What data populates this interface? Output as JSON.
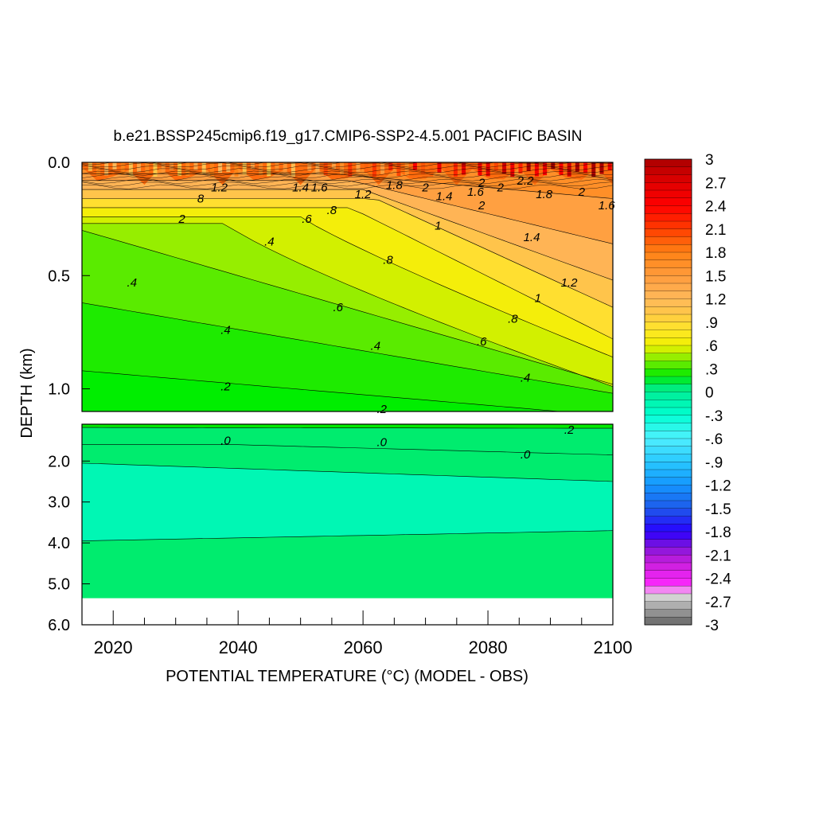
{
  "chart_data": {
    "type": "heatmap",
    "title": "b.e21.BSSP245cmip6.f19_g17.CMIP6-SSP2-4.5.001 PACIFIC BASIN",
    "xlabel": "POTENTIAL TEMPERATURE (°C) (MODEL - OBS)",
    "ylabel": "DEPTH (km)",
    "xlim": [
      2015,
      2100
    ],
    "x_ticks": [
      {
        "v": 2020,
        "label": "2020"
      },
      {
        "v": 2040,
        "label": "2040"
      },
      {
        "v": 2060,
        "label": "2060"
      },
      {
        "v": 2080,
        "label": "2080"
      },
      {
        "v": 2100,
        "label": "2100"
      }
    ],
    "upper_panel": {
      "ylim": [
        0.0,
        1.1
      ],
      "y_ticks": [
        {
          "v": 0.0,
          "label": "0.0"
        },
        {
          "v": 0.5,
          "label": "0.5"
        },
        {
          "v": 1.0,
          "label": "1.0"
        }
      ]
    },
    "lower_panel": {
      "ylim": [
        1.1,
        6.0
      ],
      "y_ticks": [
        {
          "v": 2.0,
          "label": "2.0"
        },
        {
          "v": 3.0,
          "label": "3.0"
        },
        {
          "v": 4.0,
          "label": "4.0"
        },
        {
          "v": 5.0,
          "label": "5.0"
        },
        {
          "v": 6.0,
          "label": "6.0"
        }
      ]
    },
    "colorbar": {
      "range": [
        -3,
        3
      ],
      "step": 0.1,
      "labels": [
        "3",
        "2.7",
        "2.4",
        "2.1",
        "1.8",
        "1.5",
        "1.2",
        ".9",
        ".6",
        ".3",
        "0",
        "-.3",
        "-.6",
        "-.9",
        "-1.2",
        "-1.5",
        "-1.8",
        "-2.1",
        "-2.4",
        "-2.7",
        "-3"
      ]
    },
    "contour_labels": [
      {
        "panel": "upper",
        "x": 2023,
        "y": 0.53,
        "text": ".4"
      },
      {
        "panel": "upper",
        "x": 2038,
        "y": 0.74,
        "text": ".4"
      },
      {
        "panel": "upper",
        "x": 2038,
        "y": 0.99,
        "text": ".2"
      },
      {
        "panel": "upper",
        "x": 2045,
        "y": 0.35,
        "text": ".4"
      },
      {
        "panel": "upper",
        "x": 2051,
        "y": 0.25,
        "text": ".6"
      },
      {
        "panel": "upper",
        "x": 2055,
        "y": 0.21,
        "text": ".8"
      },
      {
        "panel": "upper",
        "x": 2056,
        "y": 0.64,
        "text": ".6"
      },
      {
        "panel": "upper",
        "x": 2062,
        "y": 0.81,
        "text": ".4"
      },
      {
        "panel": "upper",
        "x": 2063,
        "y": 1.09,
        "text": ".2"
      },
      {
        "panel": "upper",
        "x": 2064,
        "y": 0.43,
        "text": ".8"
      },
      {
        "panel": "upper",
        "x": 2072,
        "y": 0.28,
        "text": "1"
      },
      {
        "panel": "upper",
        "x": 2079,
        "y": 0.79,
        "text": ".6"
      },
      {
        "panel": "upper",
        "x": 2084,
        "y": 0.69,
        "text": ".8"
      },
      {
        "panel": "upper",
        "x": 2088,
        "y": 0.6,
        "text": "1"
      },
      {
        "panel": "upper",
        "x": 2086,
        "y": 0.95,
        "text": ".4"
      },
      {
        "panel": "upper",
        "x": 2093,
        "y": 0.53,
        "text": "1.2"
      },
      {
        "panel": "upper",
        "x": 2087,
        "y": 0.33,
        "text": "1.4"
      },
      {
        "panel": "upper",
        "x": 2099,
        "y": 0.19,
        "text": "1.6"
      },
      {
        "panel": "upper",
        "x": 2095,
        "y": 0.13,
        "text": "2"
      },
      {
        "panel": "upper",
        "x": 2089,
        "y": 0.14,
        "text": "1.8"
      },
      {
        "panel": "upper",
        "x": 2065,
        "y": 0.1,
        "text": "1.8"
      },
      {
        "panel": "upper",
        "x": 2060,
        "y": 0.14,
        "text": "1.2"
      },
      {
        "panel": "upper",
        "x": 2050,
        "y": 0.11,
        "text": "1.4"
      },
      {
        "panel": "upper",
        "x": 2053,
        "y": 0.11,
        "text": "1.6"
      },
      {
        "panel": "upper",
        "x": 2037,
        "y": 0.11,
        "text": "1.2"
      },
      {
        "panel": "upper",
        "x": 2034,
        "y": 0.16,
        "text": "8"
      },
      {
        "panel": "upper",
        "x": 2031,
        "y": 0.25,
        "text": "2"
      },
      {
        "panel": "upper",
        "x": 2070,
        "y": 0.11,
        "text": "2"
      },
      {
        "panel": "upper",
        "x": 2073,
        "y": 0.15,
        "text": "1.4"
      },
      {
        "panel": "upper",
        "x": 2078,
        "y": 0.13,
        "text": "1.6"
      },
      {
        "panel": "upper",
        "x": 2079,
        "y": 0.09,
        "text": "2"
      },
      {
        "panel": "upper",
        "x": 2079,
        "y": 0.19,
        "text": "2"
      },
      {
        "panel": "upper",
        "x": 2082,
        "y": 0.11,
        "text": "2"
      },
      {
        "panel": "upper",
        "x": 2086,
        "y": 0.08,
        "text": "2.2"
      },
      {
        "panel": "lower",
        "x": 2038,
        "y": 1.5,
        "text": ".0"
      },
      {
        "panel": "lower",
        "x": 2063,
        "y": 1.54,
        "text": ".0"
      },
      {
        "panel": "lower",
        "x": 2086,
        "y": 1.84,
        "text": ".0"
      },
      {
        "panel": "lower",
        "x": 2093,
        "y": 1.24,
        "text": ".2"
      }
    ]
  }
}
